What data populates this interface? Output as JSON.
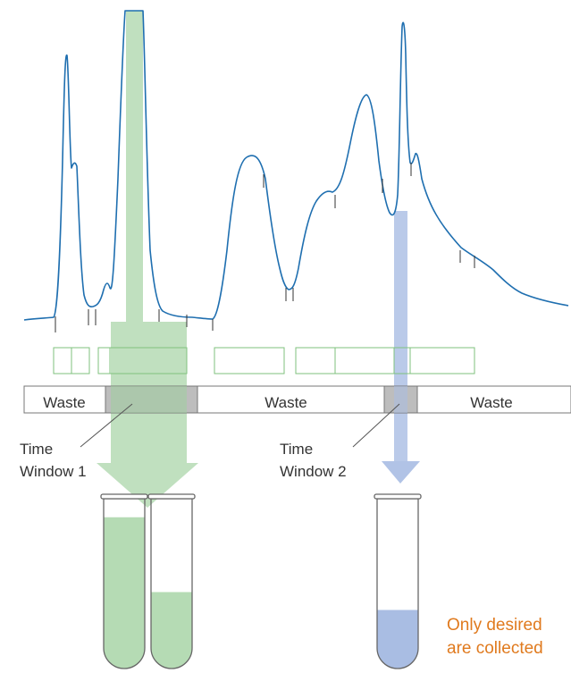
{
  "colors": {
    "trace": "#1f6fb0",
    "green": "#b5dbb4",
    "green_box": "#7fc27e",
    "blue": "#a9bde3",
    "bar_border": "#777777",
    "window_fill": "#bdbdbd",
    "note": "#e07a1e"
  },
  "waste_bar": {
    "segments": [
      {
        "label": "Waste"
      },
      {
        "label": "Waste"
      },
      {
        "label": "Waste"
      }
    ]
  },
  "windows": [
    {
      "line1": "Time",
      "line2": "Window 1"
    },
    {
      "line1": "Time",
      "line2": "Window 2"
    }
  ],
  "note": {
    "line1": "Only desired",
    "line2": "are collected"
  },
  "tubes": [
    {
      "fill_color": "green",
      "fill_level": 0.93
    },
    {
      "fill_color": "green",
      "fill_level": 0.47
    },
    {
      "fill_color": "blue",
      "fill_level": 0.36
    }
  ]
}
